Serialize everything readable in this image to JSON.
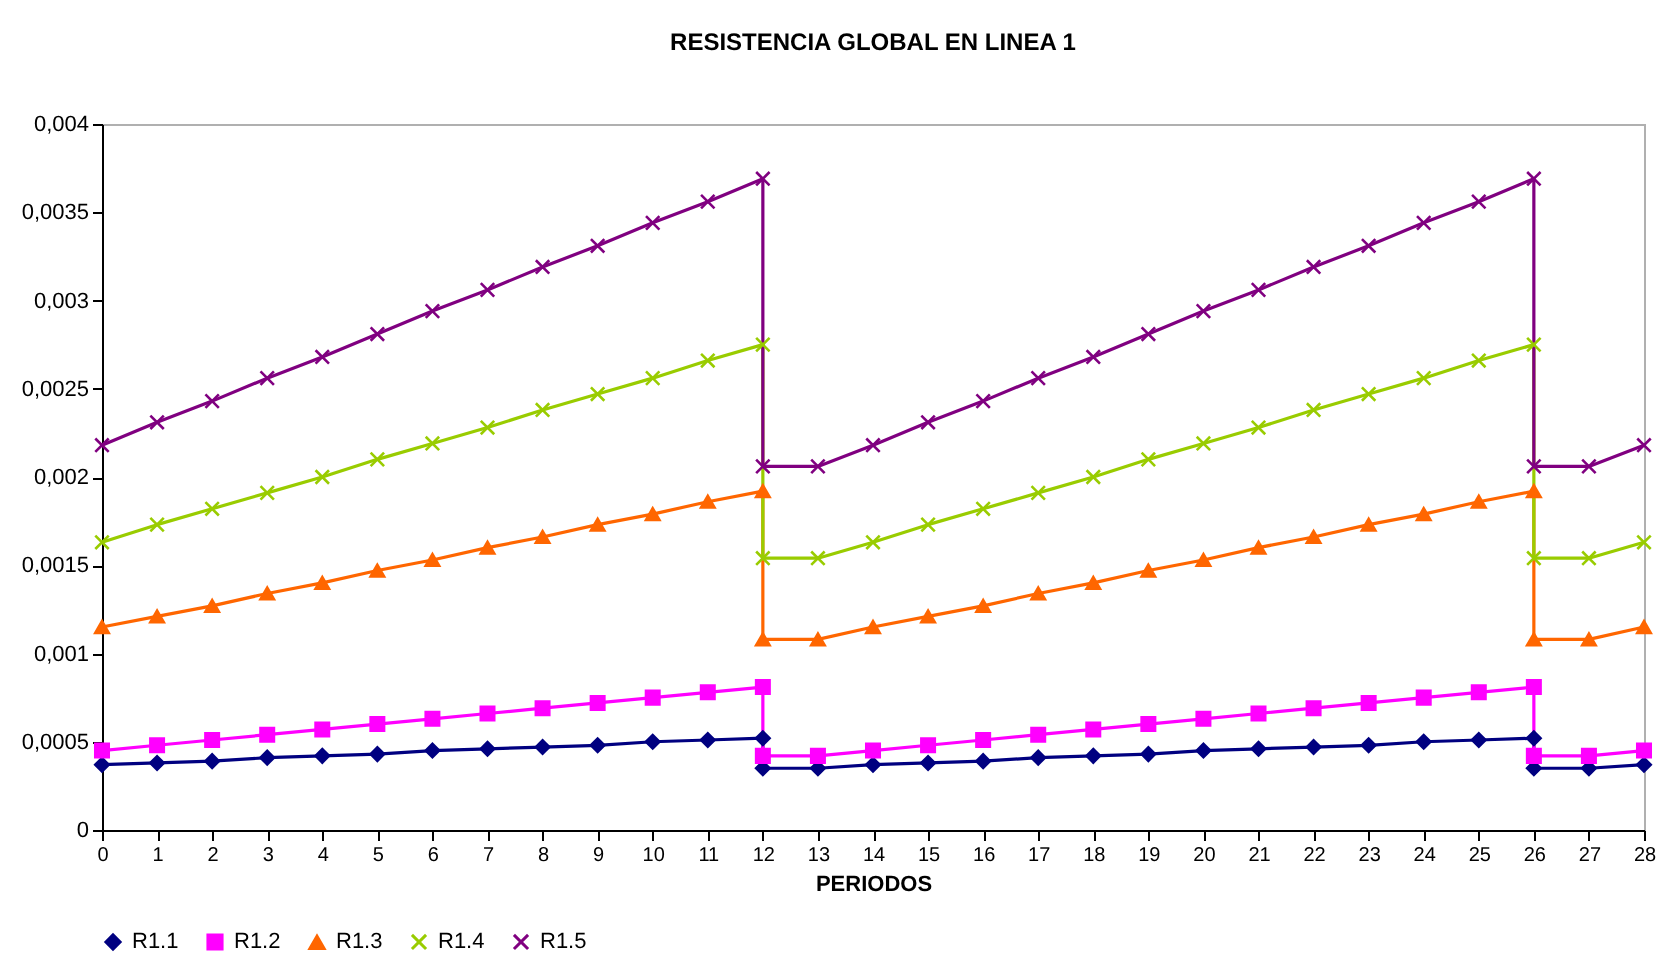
{
  "chart_data": {
    "type": "line",
    "title": "RESISTENCIA GLOBAL EN LINEA 1",
    "xlabel": "PERIODOS",
    "x": [
      0,
      1,
      2,
      3,
      4,
      5,
      6,
      7,
      8,
      9,
      10,
      11,
      12,
      12,
      13,
      14,
      15,
      16,
      17,
      18,
      19,
      20,
      21,
      22,
      23,
      24,
      25,
      26,
      26,
      27,
      28
    ],
    "series": [
      {
        "name": "R1.1",
        "color": "#000080",
        "marker": "diamond",
        "values": [
          0.00037,
          0.00038,
          0.00039,
          0.00041,
          0.00042,
          0.00043,
          0.00045,
          0.00046,
          0.00047,
          0.00048,
          0.0005,
          0.00051,
          0.00052,
          0.00035,
          0.00035,
          0.00037,
          0.00038,
          0.00039,
          0.00041,
          0.00042,
          0.00043,
          0.00045,
          0.00046,
          0.00047,
          0.00048,
          0.0005,
          0.00051,
          0.00052,
          0.00035,
          0.00035,
          0.00037
        ]
      },
      {
        "name": "R1.2",
        "color": "#ff00ff",
        "marker": "square",
        "values": [
          0.00045,
          0.00048,
          0.00051,
          0.00054,
          0.00057,
          0.0006,
          0.00063,
          0.00066,
          0.00069,
          0.00072,
          0.00075,
          0.00078,
          0.00081,
          0.00042,
          0.00042,
          0.00045,
          0.00048,
          0.00051,
          0.00054,
          0.00057,
          0.0006,
          0.00063,
          0.00066,
          0.00069,
          0.00072,
          0.00075,
          0.00078,
          0.00081,
          0.00042,
          0.00042,
          0.00045
        ]
      },
      {
        "name": "R1.3",
        "color": "#ff6600",
        "marker": "triangle",
        "values": [
          0.00115,
          0.00121,
          0.00127,
          0.00134,
          0.0014,
          0.00147,
          0.00153,
          0.0016,
          0.00166,
          0.00173,
          0.00179,
          0.00186,
          0.00192,
          0.00108,
          0.00108,
          0.00115,
          0.00121,
          0.00127,
          0.00134,
          0.0014,
          0.00147,
          0.00153,
          0.0016,
          0.00166,
          0.00173,
          0.00179,
          0.00186,
          0.00192,
          0.00108,
          0.00108,
          0.00115
        ]
      },
      {
        "name": "R1.4",
        "color": "#99cc00",
        "marker": "cross",
        "values": [
          0.00163,
          0.00173,
          0.00182,
          0.00191,
          0.002,
          0.0021,
          0.00219,
          0.00228,
          0.00238,
          0.00247,
          0.00256,
          0.00266,
          0.00275,
          0.00154,
          0.00154,
          0.00163,
          0.00173,
          0.00182,
          0.00191,
          0.002,
          0.0021,
          0.00219,
          0.00228,
          0.00238,
          0.00247,
          0.00256,
          0.00266,
          0.00275,
          0.00154,
          0.00154,
          0.00163
        ]
      },
      {
        "name": "R1.5",
        "color": "#800080",
        "marker": "cross",
        "values": [
          0.00218,
          0.00231,
          0.00243,
          0.00256,
          0.00268,
          0.00281,
          0.00294,
          0.00306,
          0.00319,
          0.00331,
          0.00344,
          0.00356,
          0.00369,
          0.00206,
          0.00206,
          0.00218,
          0.00231,
          0.00243,
          0.00256,
          0.00268,
          0.00281,
          0.00294,
          0.00306,
          0.00319,
          0.00331,
          0.00344,
          0.00356,
          0.00369,
          0.00206,
          0.00206,
          0.00218
        ]
      }
    ],
    "xlim": [
      0,
      28
    ],
    "xticks": [
      0,
      1,
      2,
      3,
      4,
      5,
      6,
      7,
      8,
      9,
      10,
      11,
      12,
      13,
      14,
      15,
      16,
      17,
      18,
      19,
      20,
      21,
      22,
      23,
      24,
      25,
      26,
      27,
      28
    ],
    "ylim": [
      0,
      0.004
    ],
    "yticks": [
      {
        "value": 0,
        "label": "0"
      },
      {
        "value": 0.0005,
        "label": "0,0005"
      },
      {
        "value": 0.001,
        "label": "0,001"
      },
      {
        "value": 0.0015,
        "label": "0,0015"
      },
      {
        "value": 0.002,
        "label": "0,002"
      },
      {
        "value": 0.0025,
        "label": "0,0025"
      },
      {
        "value": 0.003,
        "label": "0,003"
      },
      {
        "value": 0.0035,
        "label": "0,0035"
      },
      {
        "value": 0.004,
        "label": "0,004"
      }
    ],
    "grid": false,
    "legend": "bottom",
    "line_style": "solid"
  }
}
